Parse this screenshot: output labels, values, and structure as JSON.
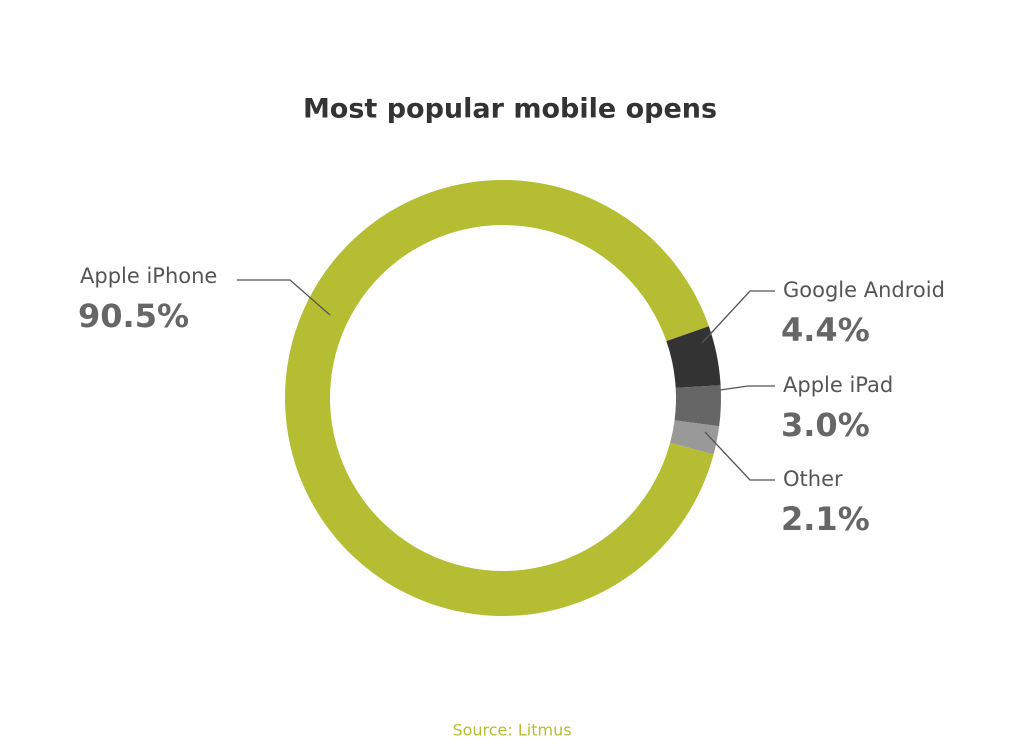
{
  "chart_data": {
    "type": "donut",
    "title": "Most popular mobile opens",
    "categories": [
      "Apple iPhone",
      "Google Android",
      "Apple iPad",
      "Other"
    ],
    "values": [
      90.5,
      4.4,
      3.0,
      2.1
    ],
    "value_labels": [
      "90.5%",
      "4.4%",
      "3.0%",
      "2.1%"
    ],
    "colors": [
      "#b5be33",
      "#333333",
      "#666666",
      "#999999"
    ],
    "source": "Source: Litmus"
  }
}
